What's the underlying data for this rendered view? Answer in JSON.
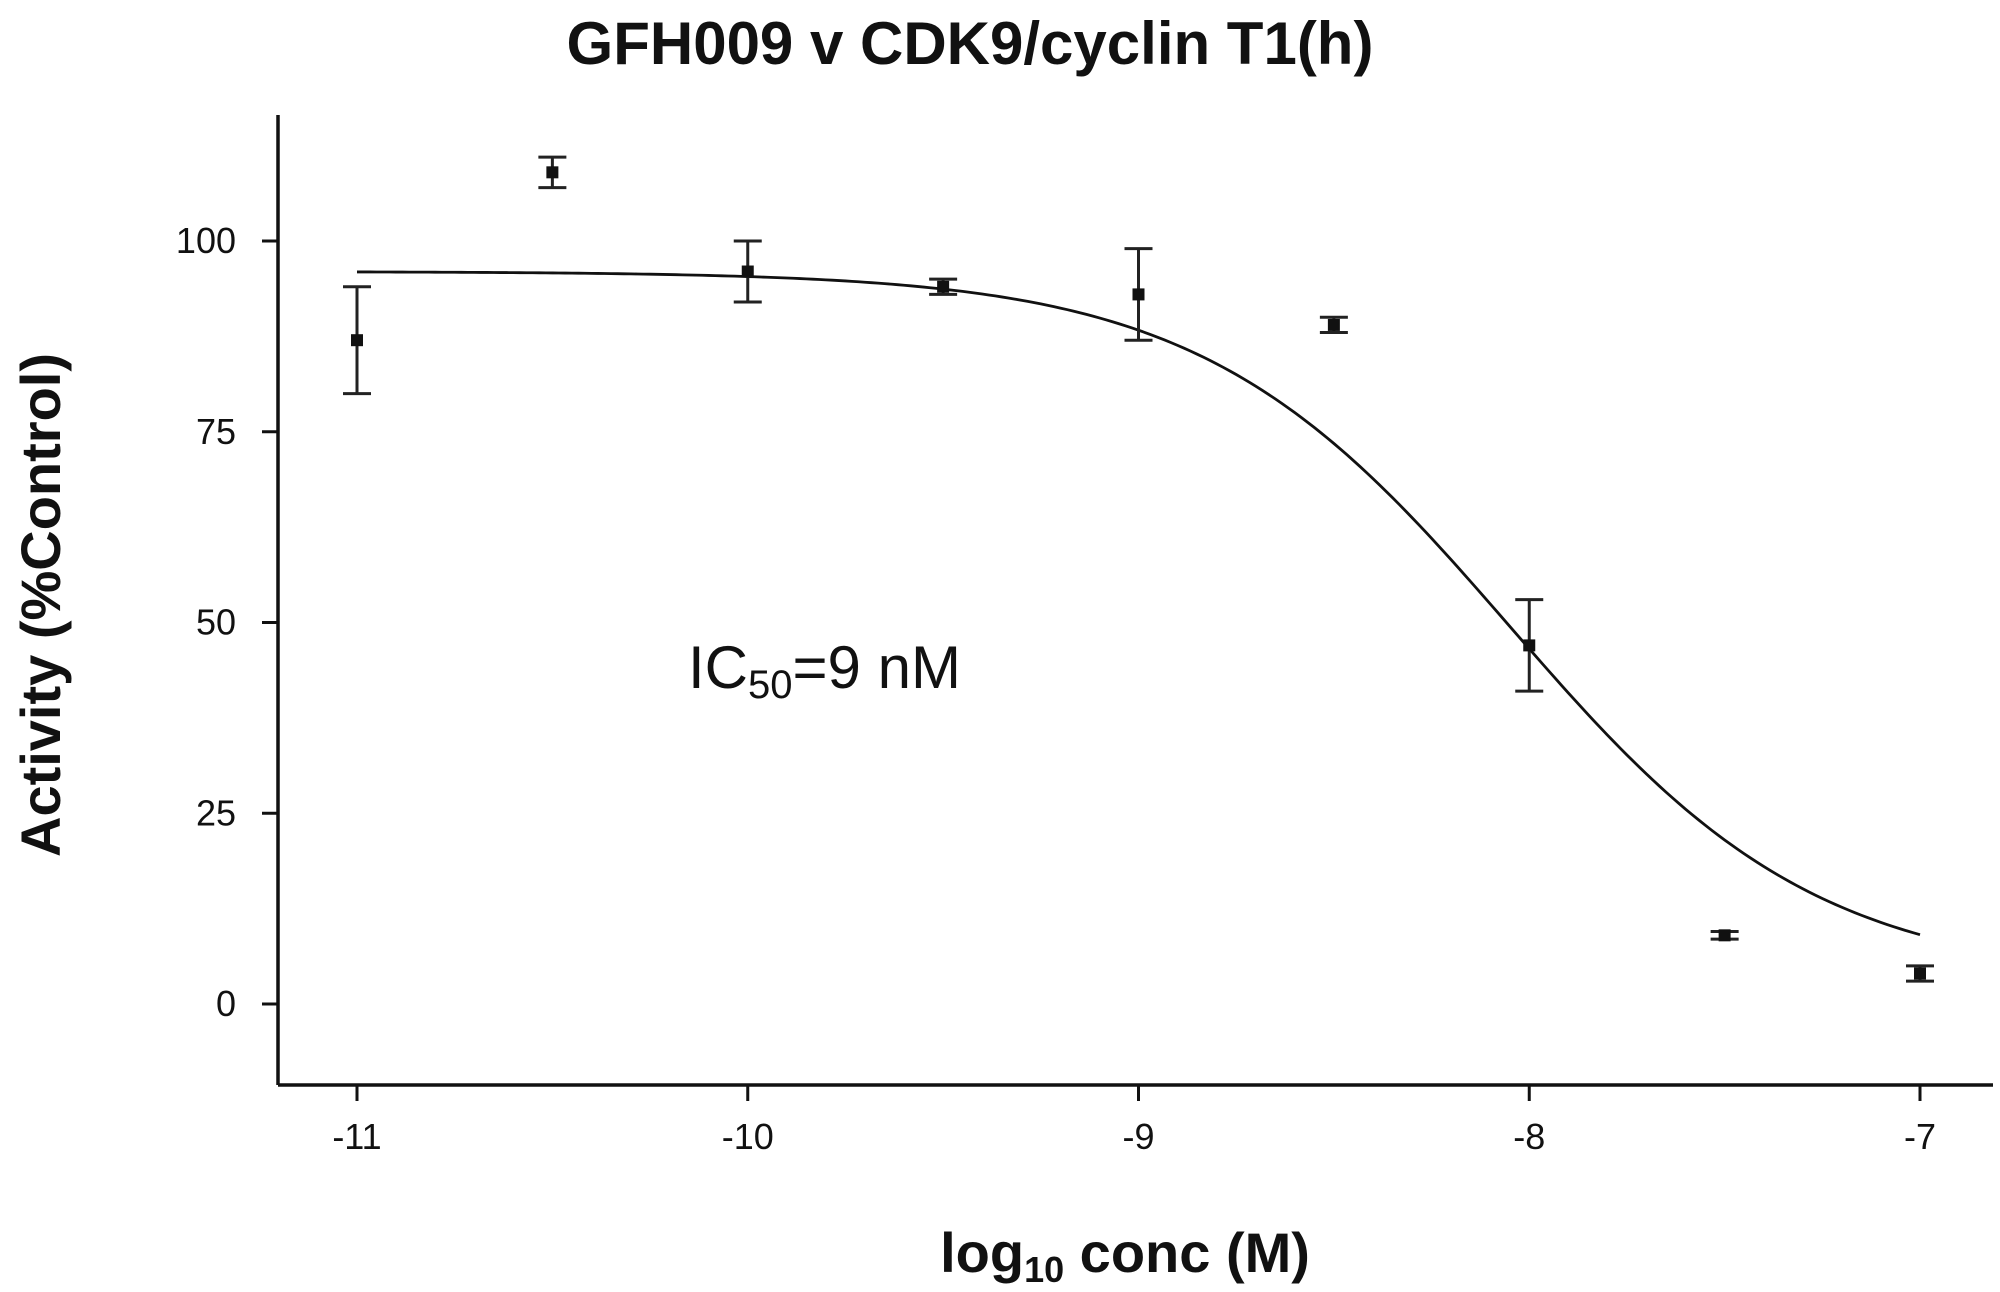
{
  "chart_data": {
    "type": "scatter",
    "title": "GFH009 v CDK9/cyclin T1(h)",
    "xlabel": {
      "main": "log",
      "sub": "10",
      "rest": " conc (M)"
    },
    "ylabel": "Activity (%Control)",
    "xlim": [
      -11.2,
      -6.8
    ],
    "ylim": [
      -10,
      117
    ],
    "x_ticks": [
      -11,
      -10,
      -9,
      -8,
      -7
    ],
    "y_ticks": [
      0,
      25,
      50,
      75,
      100
    ],
    "x_tick_labels": [
      "-11",
      "-10",
      "-9",
      "-8",
      "-7"
    ],
    "y_tick_labels": [
      "0",
      "25",
      "50",
      "75",
      "100"
    ],
    "points": [
      {
        "x": -11,
        "y": 87,
        "err_low": 80,
        "err_high": 94
      },
      {
        "x": -10.5,
        "y": 109,
        "err_low": 107,
        "err_high": 111
      },
      {
        "x": -10,
        "y": 96,
        "err_low": 92,
        "err_high": 100
      },
      {
        "x": -9.5,
        "y": 94,
        "err_low": 93,
        "err_high": 95
      },
      {
        "x": -9,
        "y": 93,
        "err_low": 87,
        "err_high": 99
      },
      {
        "x": -8.5,
        "y": 89,
        "err_low": 88,
        "err_high": 90
      },
      {
        "x": -8,
        "y": 47,
        "err_low": 41,
        "err_high": 53
      },
      {
        "x": -7.5,
        "y": 9,
        "err_low": 8.5,
        "err_high": 9.5
      },
      {
        "x": -7,
        "y": 4,
        "err_low": 3,
        "err_high": 5
      }
    ],
    "fit_curve": {
      "model": "four-parameter logistic",
      "top": 96,
      "bottom": 3,
      "log_ic50": -8.05,
      "hill_slope": 1.1,
      "x_range": [
        -11,
        -7
      ]
    },
    "annotation": {
      "main": "IC",
      "sub": "50",
      "rest": "=9 nM"
    },
    "grid": false,
    "legend": "none",
    "colors": {
      "marks": "#111111",
      "background": "#ffffff"
    }
  }
}
